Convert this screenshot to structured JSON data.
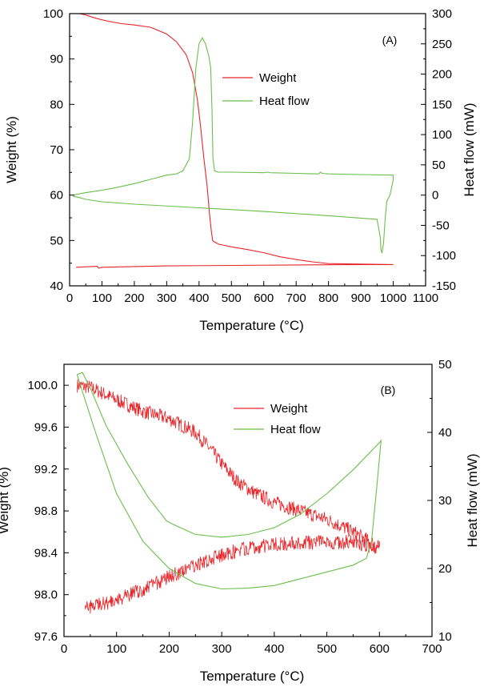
{
  "colors": {
    "weight": "#e8262a",
    "heat": "#6abf4b",
    "axis": "#000000"
  },
  "chart_data": [
    {
      "type": "line",
      "panel_label": "(A)",
      "xlabel": "Temperature (°C)",
      "ylabel": "Weight (%)",
      "y2label": "Heat flow (mW)",
      "xlim": [
        0,
        1100
      ],
      "ylim": [
        40,
        100
      ],
      "y2lim": [
        -150,
        300
      ],
      "xticks": [
        0,
        100,
        200,
        300,
        400,
        500,
        600,
        700,
        800,
        900,
        1000,
        1100
      ],
      "yticks": [
        40,
        50,
        60,
        70,
        80,
        90,
        100
      ],
      "y2ticks": [
        -150,
        -100,
        -50,
        0,
        50,
        100,
        150,
        200,
        250,
        300
      ],
      "legend_placement": "upper-middle",
      "series": [
        {
          "name": "Weight",
          "axis": "left",
          "x": [
            30,
            50,
            80,
            120,
            160,
            200,
            250,
            300,
            330,
            360,
            380,
            395,
            405,
            415,
            425,
            432,
            438,
            442,
            445,
            460,
            500,
            550,
            600,
            650,
            700,
            750,
            800,
            900,
            1000,
            900,
            700,
            500,
            300,
            100,
            90,
            85,
            50,
            20
          ],
          "y": [
            100,
            99.7,
            99,
            98.3,
            97.8,
            97.5,
            97,
            95.5,
            93.8,
            91,
            87,
            81,
            75,
            68,
            62,
            56,
            52,
            50,
            49.8,
            49.2,
            48.6,
            48,
            47.3,
            46.4,
            45.8,
            45.3,
            44.9,
            44.8,
            44.7,
            44.7,
            44.6,
            44.5,
            44.4,
            44.1,
            43.9,
            44.3,
            44.2,
            44.1
          ]
        },
        {
          "name": "Heat flow",
          "axis": "right",
          "x": [
            10,
            50,
            100,
            150,
            200,
            250,
            300,
            330,
            350,
            370,
            380,
            390,
            400,
            410,
            420,
            430,
            436,
            440,
            443,
            448,
            460,
            500,
            600,
            610,
            620,
            700,
            770,
            775,
            780,
            800,
            900,
            1000,
            1000,
            990,
            980,
            975,
            970,
            965,
            962,
            960,
            950,
            900,
            800,
            600,
            400,
            200,
            100,
            50,
            30,
            10
          ],
          "y": [
            0,
            4,
            8,
            13,
            19,
            26,
            33,
            35,
            40,
            60,
            120,
            210,
            250,
            260,
            250,
            230,
            210,
            140,
            60,
            40,
            38,
            38,
            37,
            38,
            37,
            36,
            35,
            38,
            36,
            35,
            34,
            33,
            25,
            0,
            -10,
            -40,
            -80,
            -96,
            -90,
            -70,
            -40,
            -38,
            -34,
            -27,
            -21,
            -15,
            -11,
            -7,
            -4,
            -2
          ]
        }
      ]
    },
    {
      "type": "line",
      "panel_label": "(B)",
      "xlabel": "Temperature (°C)",
      "ylabel": "Weight (%)",
      "y2label": "Heat flow (mW)",
      "xlim": [
        0,
        700
      ],
      "ylim": [
        97.6,
        100.2
      ],
      "y2lim": [
        10,
        50
      ],
      "xticks": [
        0,
        100,
        200,
        300,
        400,
        500,
        600,
        700
      ],
      "yticks": [
        97.6,
        98.0,
        98.4,
        98.8,
        99.2,
        99.6,
        100.0
      ],
      "y2ticks": [
        10,
        20,
        30,
        40,
        50
      ],
      "legend_placement": "upper-middle",
      "series": [
        {
          "name": "Weight",
          "axis": "left",
          "noisy": true,
          "x": [
            25,
            50,
            100,
            150,
            200,
            250,
            280,
            300,
            330,
            360,
            400,
            450,
            500,
            550,
            600,
            600,
            550,
            500,
            450,
            400,
            350,
            300,
            250,
            200,
            150,
            100,
            50,
            40
          ],
          "y": [
            100.0,
            99.98,
            99.86,
            99.75,
            99.68,
            99.55,
            99.38,
            99.25,
            99.08,
            98.98,
            98.88,
            98.8,
            98.72,
            98.6,
            98.45,
            98.45,
            98.5,
            98.5,
            98.5,
            98.48,
            98.45,
            98.38,
            98.28,
            98.17,
            98.05,
            97.95,
            97.88,
            97.86
          ]
        },
        {
          "name": "Heat flow",
          "axis": "right",
          "x": [
            25,
            35,
            50,
            80,
            120,
            160,
            195,
            200,
            210,
            250,
            300,
            350,
            400,
            450,
            500,
            550,
            600,
            603,
            595,
            585,
            575,
            550,
            500,
            450,
            400,
            350,
            300,
            250,
            200,
            150,
            100,
            60,
            35,
            25
          ],
          "y": [
            48.5,
            48.8,
            46.5,
            41,
            35.5,
            30.5,
            27,
            26.8,
            26.4,
            25,
            24.6,
            25,
            26,
            28,
            31,
            34.5,
            38.5,
            38.8,
            32,
            24,
            21.5,
            20.5,
            19.5,
            18.5,
            17.5,
            17.1,
            17,
            17.8,
            20,
            24,
            31,
            40,
            46,
            48.5
          ]
        }
      ]
    }
  ]
}
